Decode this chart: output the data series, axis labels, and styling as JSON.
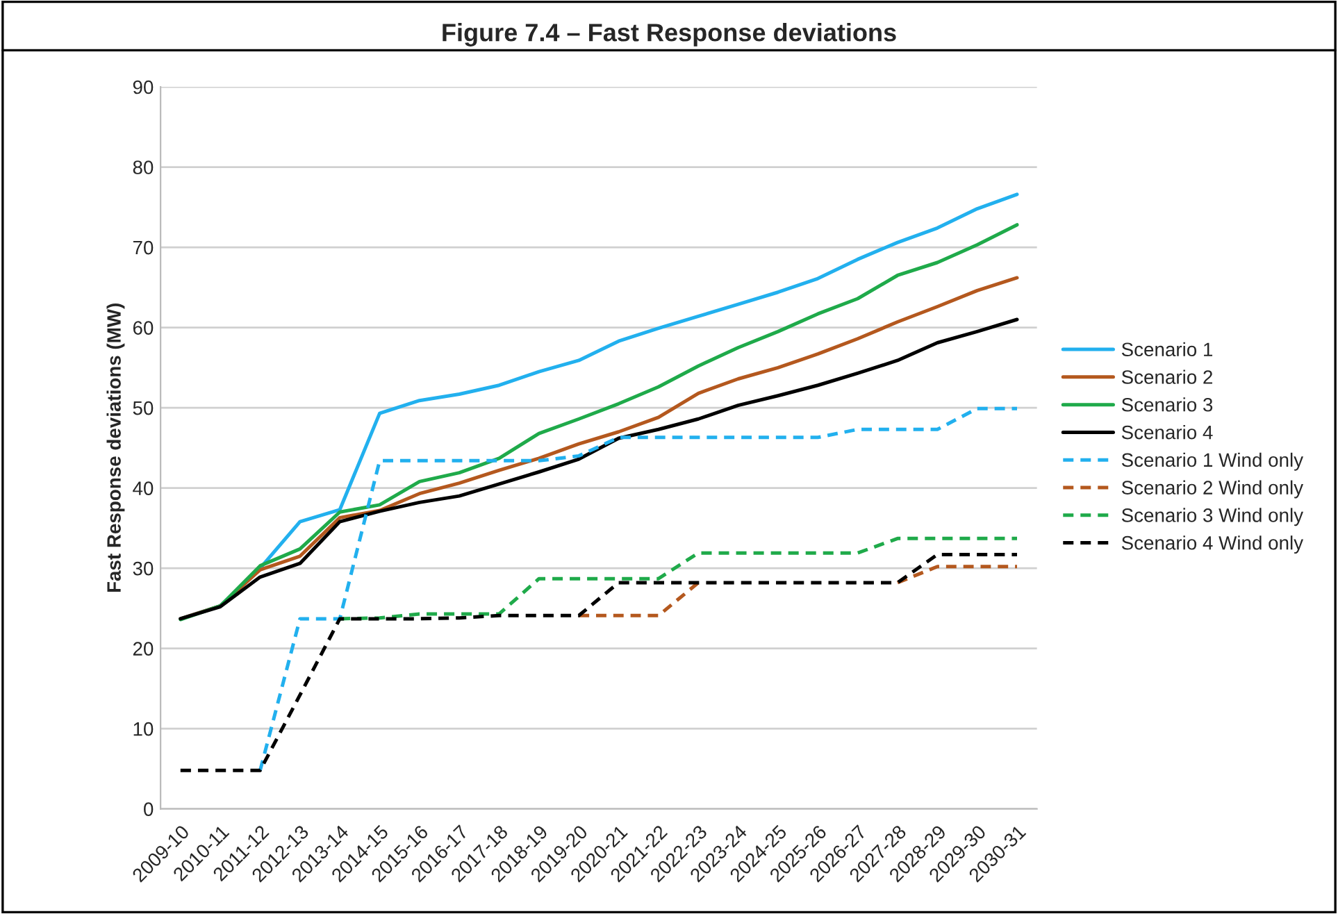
{
  "chart_data": {
    "type": "line",
    "title": "Figure 7.4 – Fast Response deviations",
    "ylabel": "Fast Response deviations (MW)",
    "categories": [
      "2009-10",
      "2010-11",
      "2011-12",
      "2012-13",
      "2013-14",
      "2014-15",
      "2015-16",
      "2016-17",
      "2017-18",
      "2018-19",
      "2019-20",
      "2020-21",
      "2021-22",
      "2022-23",
      "2023-24",
      "2024-25",
      "2025-26",
      "2026-27",
      "2027-28",
      "2028-29",
      "2029-30",
      "2030-31"
    ],
    "ylim": [
      0,
      90
    ],
    "yticks": [
      0,
      10,
      20,
      30,
      40,
      50,
      60,
      70,
      80,
      90
    ],
    "grid": "y",
    "legend": "right",
    "marker": "none",
    "series": [
      {
        "name": "Scenario 1",
        "color": "#22b0ee",
        "line_style": "solid",
        "values": [
          23.7,
          25.3,
          30.0,
          35.8,
          37.3,
          49.3,
          50.9,
          51.7,
          52.8,
          54.5,
          55.9,
          58.3,
          59.9,
          61.4,
          62.9,
          64.4,
          66.1,
          68.5,
          70.6,
          72.4,
          74.8,
          76.6
        ]
      },
      {
        "name": "Scenario 2",
        "color": "#b4581e",
        "line_style": "solid",
        "values": [
          23.7,
          25.3,
          29.8,
          31.5,
          36.3,
          37.2,
          39.3,
          40.6,
          42.2,
          43.7,
          45.5,
          47.0,
          48.8,
          51.8,
          53.6,
          55.0,
          56.7,
          58.6,
          60.7,
          62.6,
          64.6,
          66.2
        ]
      },
      {
        "name": "Scenario 3",
        "color": "#1faa4a",
        "line_style": "solid",
        "values": [
          23.6,
          25.3,
          30.3,
          32.4,
          37.0,
          37.9,
          40.8,
          41.9,
          43.7,
          46.8,
          48.6,
          50.5,
          52.6,
          55.2,
          57.5,
          59.5,
          61.7,
          63.6,
          66.5,
          68.1,
          70.3,
          72.8
        ]
      },
      {
        "name": "Scenario 4",
        "color": "#000000",
        "line_style": "solid",
        "values": [
          23.7,
          25.2,
          28.9,
          30.6,
          35.8,
          37.1,
          38.2,
          39.0,
          40.5,
          42.0,
          43.6,
          46.2,
          47.3,
          48.6,
          50.3,
          51.5,
          52.8,
          54.3,
          55.9,
          58.1,
          59.5,
          61.0
        ]
      },
      {
        "name": "Scenario 1 Wind only",
        "color": "#22b0ee",
        "line_style": "dashed",
        "values": [
          null,
          null,
          4.8,
          23.7,
          23.7,
          43.4,
          43.4,
          43.4,
          43.4,
          43.4,
          44.0,
          46.3,
          46.3,
          46.3,
          46.3,
          46.3,
          46.3,
          47.3,
          47.3,
          47.3,
          49.9,
          49.9
        ]
      },
      {
        "name": "Scenario 2 Wind only",
        "color": "#b4581e",
        "line_style": "dashed",
        "values": [
          null,
          null,
          null,
          null,
          null,
          null,
          null,
          null,
          null,
          null,
          24.1,
          24.1,
          24.1,
          28.2,
          null,
          null,
          null,
          null,
          28.2,
          30.2,
          30.2,
          30.2
        ]
      },
      {
        "name": "Scenario 3 Wind only",
        "color": "#1faa4a",
        "line_style": "dashed",
        "values": [
          null,
          null,
          null,
          null,
          23.7,
          23.8,
          24.3,
          24.3,
          24.3,
          28.7,
          28.7,
          28.7,
          28.7,
          31.9,
          31.9,
          31.9,
          31.9,
          31.9,
          33.7,
          33.7,
          33.7,
          33.7
        ]
      },
      {
        "name": "Scenario 4 Wind only",
        "color": "#000000",
        "line_style": "dashed",
        "values": [
          4.8,
          4.8,
          4.8,
          14.2,
          23.7,
          23.7,
          23.7,
          23.8,
          24.1,
          24.1,
          24.1,
          28.2,
          28.2,
          28.2,
          28.2,
          28.2,
          28.2,
          28.2,
          28.2,
          31.7,
          31.7,
          31.7
        ]
      }
    ]
  }
}
